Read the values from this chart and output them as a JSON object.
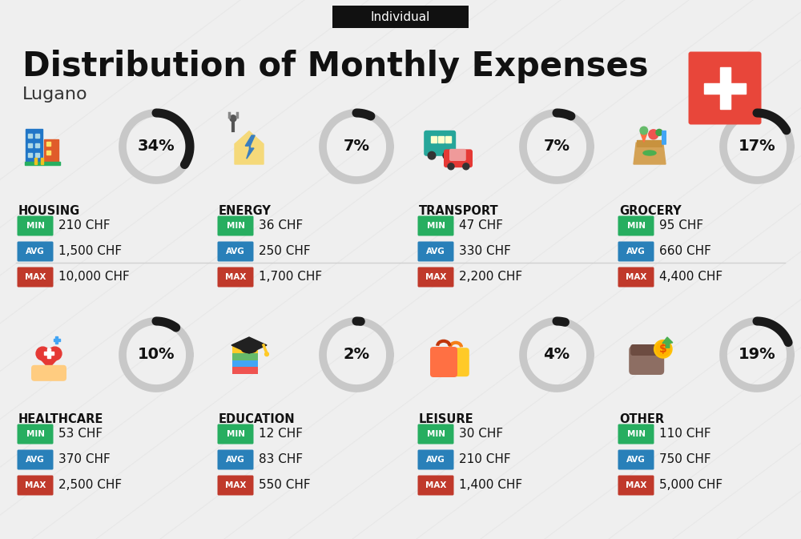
{
  "title": "Distribution of Monthly Expenses",
  "subtitle": "Individual",
  "city": "Lugano",
  "bg_color": "#efefef",
  "categories": [
    {
      "name": "HOUSING",
      "pct": 34,
      "col": 0,
      "row": 0,
      "min": "210 CHF",
      "avg": "1,500 CHF",
      "max": "10,000 CHF"
    },
    {
      "name": "ENERGY",
      "pct": 7,
      "col": 1,
      "row": 0,
      "min": "36 CHF",
      "avg": "250 CHF",
      "max": "1,700 CHF"
    },
    {
      "name": "TRANSPORT",
      "pct": 7,
      "col": 2,
      "row": 0,
      "min": "47 CHF",
      "avg": "330 CHF",
      "max": "2,200 CHF"
    },
    {
      "name": "GROCERY",
      "pct": 17,
      "col": 3,
      "row": 0,
      "min": "95 CHF",
      "avg": "660 CHF",
      "max": "4,400 CHF"
    },
    {
      "name": "HEALTHCARE",
      "pct": 10,
      "col": 0,
      "row": 1,
      "min": "53 CHF",
      "avg": "370 CHF",
      "max": "2,500 CHF"
    },
    {
      "name": "EDUCATION",
      "pct": 2,
      "col": 1,
      "row": 1,
      "min": "12 CHF",
      "avg": "83 CHF",
      "max": "550 CHF"
    },
    {
      "name": "LEISURE",
      "pct": 4,
      "col": 2,
      "row": 1,
      "min": "30 CHF",
      "avg": "210 CHF",
      "max": "1,400 CHF"
    },
    {
      "name": "OTHER",
      "pct": 19,
      "col": 3,
      "row": 1,
      "min": "110 CHF",
      "avg": "750 CHF",
      "max": "5,000 CHF"
    }
  ],
  "min_color": "#27ae60",
  "avg_color": "#2980b9",
  "max_color": "#c0392b",
  "donut_filled_color": "#1a1a1a",
  "donut_empty_color": "#c8c8c8",
  "swiss_cross_color": "#e8463a",
  "title_color": "#111111",
  "city_color": "#333333",
  "subtitle_bg": "#111111",
  "subtitle_fg": "#ffffff",
  "value_fontsize": 11,
  "badge_fontsize": 7.5,
  "cat_fontsize": 10.5,
  "pct_fontsize": 14
}
